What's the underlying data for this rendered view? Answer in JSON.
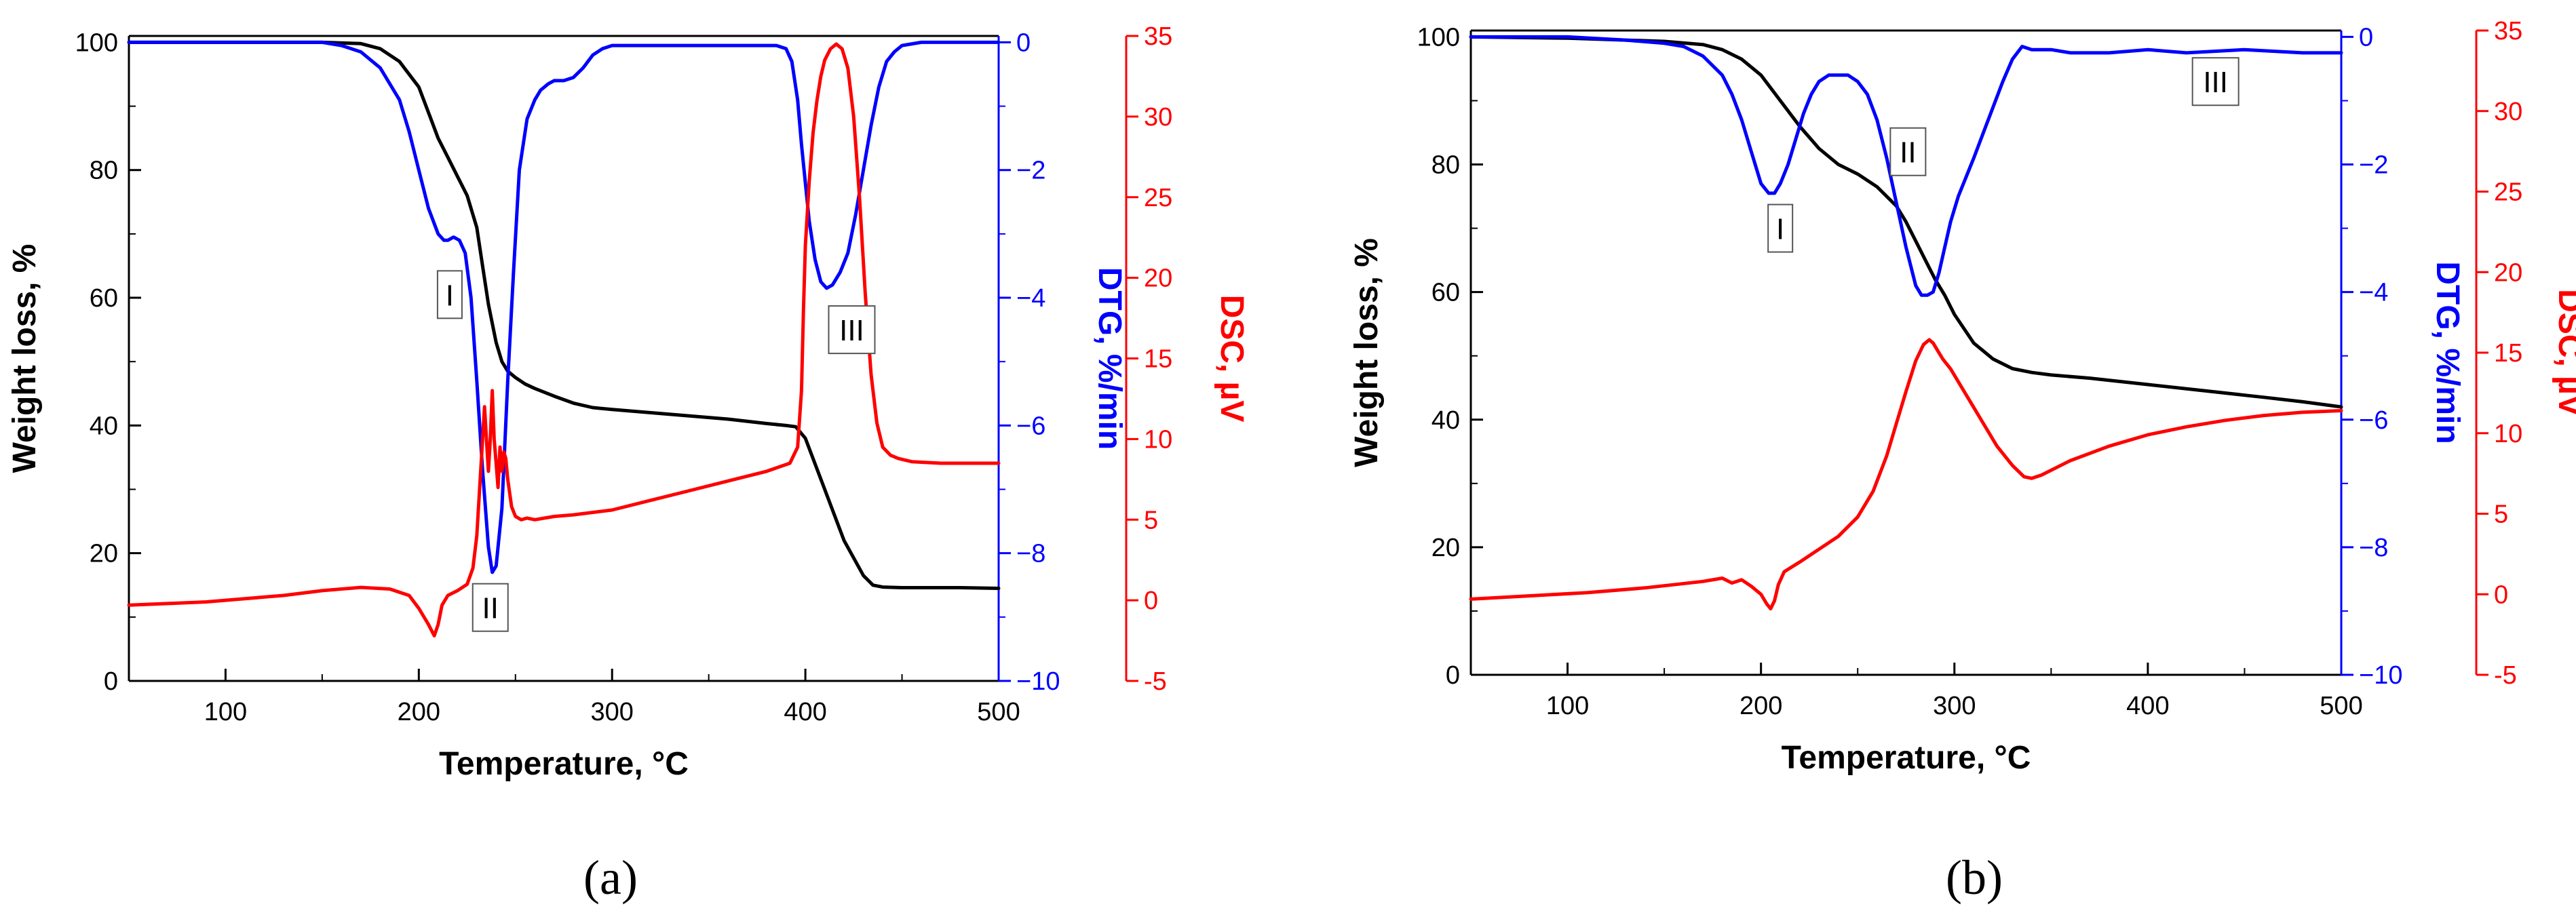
{
  "chart_data": [
    {
      "type": "line",
      "panel_label": "(a)",
      "xlabel": "Temperature, °C",
      "xlim": [
        50,
        500
      ],
      "xticks": [
        100,
        200,
        300,
        400,
        500
      ],
      "axes": {
        "weight": {
          "label": "Weight loss, %",
          "lim": [
            0,
            101
          ],
          "ticks": [
            0,
            20,
            40,
            60,
            80,
            100
          ],
          "color": "#000000"
        },
        "dtg": {
          "label": "DTG, %/min",
          "lim": [
            -10,
            0.1
          ],
          "ticks": [
            -10,
            -8,
            -6,
            -4,
            -2,
            0
          ],
          "tick_labels": [
            "−10",
            "−8",
            "−6",
            "−4",
            "−2",
            "0"
          ],
          "color": "#0000ff"
        },
        "dsc": {
          "label": "DSC, µV",
          "lim": [
            -5,
            35
          ],
          "ticks": [
            -5,
            0,
            5,
            10,
            15,
            20,
            25,
            30,
            35
          ],
          "color": "#ff0000"
        }
      },
      "series": [
        {
          "name": "Weight loss",
          "axis": "weight",
          "color": "#000000",
          "x": [
            50,
            100,
            150,
            170,
            180,
            190,
            200,
            205,
            210,
            215,
            220,
            225,
            230,
            233,
            236,
            240,
            243,
            246,
            250,
            255,
            260,
            270,
            280,
            290,
            300,
            320,
            340,
            360,
            380,
            390,
            395,
            400,
            410,
            420,
            430,
            435,
            440,
            450,
            460,
            480,
            500
          ],
          "y": [
            100,
            100,
            100,
            99.8,
            99,
            97,
            93,
            89,
            85,
            82,
            79,
            76,
            71,
            65,
            59,
            53,
            50,
            48.5,
            47.5,
            46.5,
            45.8,
            44.6,
            43.5,
            42.8,
            42.5,
            42,
            41.5,
            41,
            40.3,
            40,
            39.8,
            38,
            30,
            22,
            16.5,
            15,
            14.7,
            14.6,
            14.6,
            14.6,
            14.5
          ]
        },
        {
          "name": "DTG",
          "axis": "dtg",
          "color": "#0000ff",
          "x": [
            50,
            100,
            150,
            160,
            170,
            180,
            190,
            195,
            200,
            205,
            210,
            213,
            215,
            218,
            221,
            224,
            227,
            230,
            233,
            236,
            238,
            240,
            243,
            246,
            249,
            252,
            256,
            260,
            263,
            267,
            270,
            275,
            280,
            285,
            290,
            295,
            300,
            310,
            320,
            330,
            340,
            350,
            360,
            370,
            380,
            385,
            390,
            393,
            396,
            398,
            400,
            402,
            405,
            408,
            411,
            414,
            418,
            422,
            426,
            430,
            434,
            438,
            442,
            446,
            450,
            460,
            470,
            480,
            490,
            500
          ],
          "y": [
            0,
            0,
            0,
            -0.05,
            -0.15,
            -0.4,
            -0.9,
            -1.4,
            -2.0,
            -2.6,
            -3.0,
            -3.1,
            -3.1,
            -3.05,
            -3.1,
            -3.3,
            -4.0,
            -5.3,
            -6.7,
            -7.9,
            -8.3,
            -8.2,
            -7.3,
            -5.3,
            -3.6,
            -2.0,
            -1.2,
            -0.9,
            -0.75,
            -0.65,
            -0.6,
            -0.6,
            -0.55,
            -0.4,
            -0.2,
            -0.1,
            -0.05,
            -0.05,
            -0.05,
            -0.05,
            -0.05,
            -0.05,
            -0.05,
            -0.05,
            -0.05,
            -0.05,
            -0.1,
            -0.3,
            -0.9,
            -1.6,
            -2.2,
            -2.8,
            -3.4,
            -3.75,
            -3.85,
            -3.8,
            -3.6,
            -3.3,
            -2.7,
            -2.0,
            -1.3,
            -0.7,
            -0.3,
            -0.15,
            -0.05,
            0,
            0,
            0,
            0,
            0
          ]
        },
        {
          "name": "DSC",
          "axis": "dsc",
          "color": "#ff0000",
          "x": [
            50,
            70,
            90,
            110,
            130,
            150,
            170,
            185,
            195,
            200,
            205,
            208,
            210,
            212,
            215,
            220,
            225,
            228,
            230,
            232,
            234,
            235,
            236,
            237,
            238,
            239,
            240,
            241,
            242,
            243,
            244,
            245,
            246,
            248,
            250,
            253,
            256,
            260,
            270,
            280,
            300,
            320,
            340,
            360,
            380,
            392,
            396,
            398,
            399,
            400,
            402,
            404,
            406,
            408,
            410,
            413,
            416,
            419,
            422,
            425,
            428,
            431,
            434,
            437,
            440,
            444,
            448,
            455,
            470,
            485,
            500
          ],
          "y": [
            -0.3,
            -0.2,
            -0.1,
            0.1,
            0.3,
            0.6,
            0.8,
            0.7,
            0.3,
            -0.5,
            -1.5,
            -2.2,
            -1.5,
            -0.3,
            0.3,
            0.6,
            1,
            2,
            4,
            8,
            12,
            10,
            8,
            10,
            13,
            10,
            8.5,
            7,
            9.5,
            8,
            9.2,
            8.8,
            7.5,
            5.8,
            5.2,
            5,
            5.1,
            5,
            5.2,
            5.3,
            5.6,
            6.2,
            6.8,
            7.4,
            8,
            8.5,
            9.5,
            13,
            18,
            22,
            26,
            29,
            31,
            32.5,
            33.5,
            34.2,
            34.5,
            34.2,
            33,
            30,
            25,
            19,
            14,
            11,
            9.5,
            9,
            8.8,
            8.6,
            8.5,
            8.5,
            8.5
          ]
        }
      ],
      "annotations": [
        {
          "text": "I",
          "x": 216,
          "y": 60.5,
          "axis": "weight"
        },
        {
          "text": "II",
          "x": 237,
          "y": 11.5,
          "axis": "weight"
        },
        {
          "text": "III",
          "x": 424,
          "y": 55,
          "axis": "weight"
        }
      ]
    },
    {
      "type": "line",
      "panel_label": "(b)",
      "xlabel": "Temperature, °C",
      "xlim": [
        50,
        500
      ],
      "xticks": [
        100,
        200,
        300,
        400,
        500
      ],
      "axes": {
        "weight": {
          "label": "Weight loss, %",
          "lim": [
            0,
            101
          ],
          "ticks": [
            0,
            20,
            40,
            60,
            80,
            100
          ],
          "color": "#000000"
        },
        "dtg": {
          "label": "DTG, %/min",
          "lim": [
            -10,
            0.1
          ],
          "ticks": [
            -10,
            -8,
            -6,
            -4,
            -2,
            0
          ],
          "tick_labels": [
            "−10",
            "−8",
            "−6",
            "−4",
            "−2",
            "0"
          ],
          "color": "#0000ff"
        },
        "dsc": {
          "label": "DSC, µV",
          "lim": [
            -5,
            35
          ],
          "ticks": [
            -5,
            0,
            5,
            10,
            15,
            20,
            25,
            30,
            35
          ],
          "color": "#ff0000"
        }
      },
      "series": [
        {
          "name": "Weight loss",
          "axis": "weight",
          "color": "#000000",
          "x": [
            50,
            100,
            150,
            170,
            180,
            190,
            200,
            210,
            220,
            230,
            240,
            250,
            260,
            270,
            275,
            280,
            285,
            290,
            295,
            300,
            310,
            320,
            330,
            340,
            350,
            370,
            400,
            430,
            460,
            480,
            500
          ],
          "y": [
            100,
            99.8,
            99.3,
            98.8,
            98,
            96.5,
            94,
            90,
            86,
            82.5,
            80,
            78.5,
            76.5,
            73.5,
            71,
            68,
            65,
            62,
            59.5,
            56.5,
            52,
            49.5,
            48,
            47.4,
            47,
            46.5,
            45.5,
            44.5,
            43.5,
            42.8,
            42
          ]
        },
        {
          "name": "DTG",
          "axis": "dtg",
          "color": "#0000ff",
          "x": [
            50,
            100,
            130,
            150,
            160,
            170,
            180,
            185,
            190,
            195,
            200,
            204,
            207,
            210,
            214,
            218,
            222,
            226,
            230,
            235,
            240,
            245,
            250,
            255,
            260,
            265,
            270,
            275,
            280,
            283,
            286,
            289,
            292,
            295,
            298,
            302,
            306,
            310,
            315,
            320,
            325,
            330,
            335,
            340,
            350,
            360,
            380,
            400,
            420,
            450,
            480,
            500
          ],
          "y": [
            0,
            0,
            -0.05,
            -0.1,
            -0.15,
            -0.3,
            -0.6,
            -0.9,
            -1.3,
            -1.8,
            -2.3,
            -2.45,
            -2.45,
            -2.3,
            -2.0,
            -1.6,
            -1.2,
            -0.9,
            -0.7,
            -0.6,
            -0.6,
            -0.6,
            -0.7,
            -0.9,
            -1.3,
            -1.9,
            -2.6,
            -3.3,
            -3.9,
            -4.05,
            -4.05,
            -4.0,
            -3.7,
            -3.3,
            -2.9,
            -2.5,
            -2.2,
            -1.9,
            -1.5,
            -1.1,
            -0.7,
            -0.35,
            -0.15,
            -0.2,
            -0.2,
            -0.25,
            -0.25,
            -0.2,
            -0.25,
            -0.2,
            -0.25,
            -0.25
          ]
        },
        {
          "name": "DSC",
          "axis": "dsc",
          "color": "#ff0000",
          "x": [
            50,
            80,
            110,
            140,
            170,
            180,
            185,
            190,
            195,
            200,
            203,
            205,
            207,
            209,
            212,
            220,
            230,
            240,
            250,
            258,
            265,
            270,
            275,
            280,
            284,
            287,
            289,
            291,
            294,
            298,
            302,
            308,
            315,
            322,
            330,
            336,
            340,
            345,
            350,
            360,
            380,
            400,
            420,
            440,
            460,
            480,
            500
          ],
          "y": [
            -0.3,
            -0.1,
            0.1,
            0.4,
            0.8,
            1.0,
            0.7,
            0.9,
            0.5,
            0,
            -0.6,
            -0.9,
            -0.4,
            0.6,
            1.4,
            2.0,
            2.8,
            3.6,
            4.8,
            6.4,
            8.6,
            10.6,
            12.6,
            14.5,
            15.5,
            15.8,
            15.6,
            15.2,
            14.6,
            14,
            13.2,
            12,
            10.6,
            9.2,
            8,
            7.3,
            7.2,
            7.4,
            7.7,
            8.3,
            9.2,
            9.9,
            10.4,
            10.8,
            11.1,
            11.3,
            11.4
          ]
        }
      ],
      "annotations": [
        {
          "text": "I",
          "x": 210,
          "y": 70,
          "axis": "weight"
        },
        {
          "text": "II",
          "x": 276,
          "y": 82,
          "axis": "weight"
        },
        {
          "text": "III",
          "x": 435,
          "y": 93,
          "axis": "weight"
        }
      ]
    }
  ]
}
